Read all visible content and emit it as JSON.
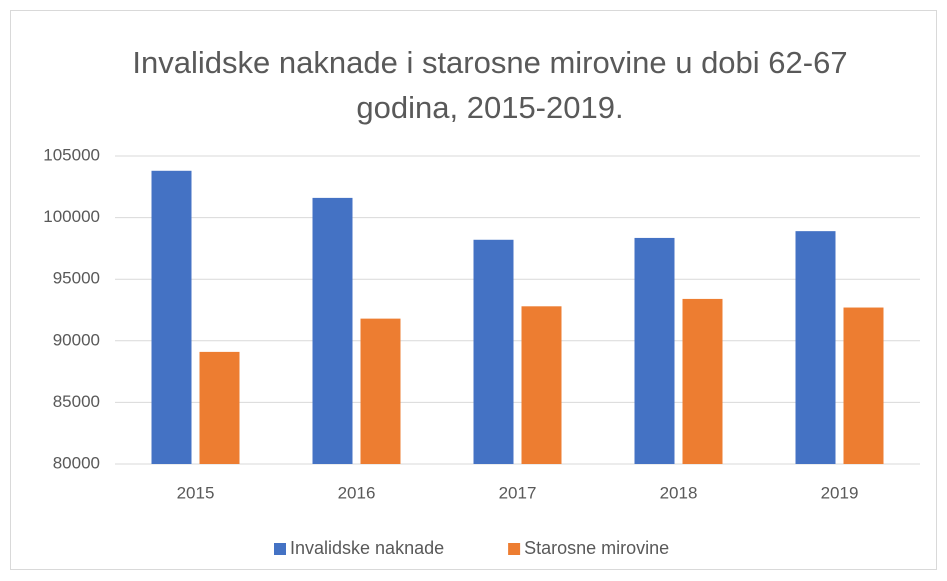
{
  "chart_data": {
    "type": "bar",
    "title": "Invalidske naknade i starosne mirovine u dobi 62-67 godina, 2015-2019.",
    "categories": [
      "2015",
      "2016",
      "2017",
      "2018",
      "2019"
    ],
    "series": [
      {
        "name": "Invalidske naknade",
        "color": "#4472c4",
        "values": [
          103800,
          101600,
          98200,
          98350,
          98900
        ]
      },
      {
        "name": "Starosne mirovine",
        "color": "#ed7d31",
        "values": [
          89100,
          91800,
          92800,
          93400,
          92700
        ]
      }
    ],
    "ylim": [
      80000,
      105000
    ],
    "yticks": [
      80000,
      85000,
      90000,
      95000,
      100000,
      105000
    ],
    "grid": true,
    "legend": "bottom"
  }
}
